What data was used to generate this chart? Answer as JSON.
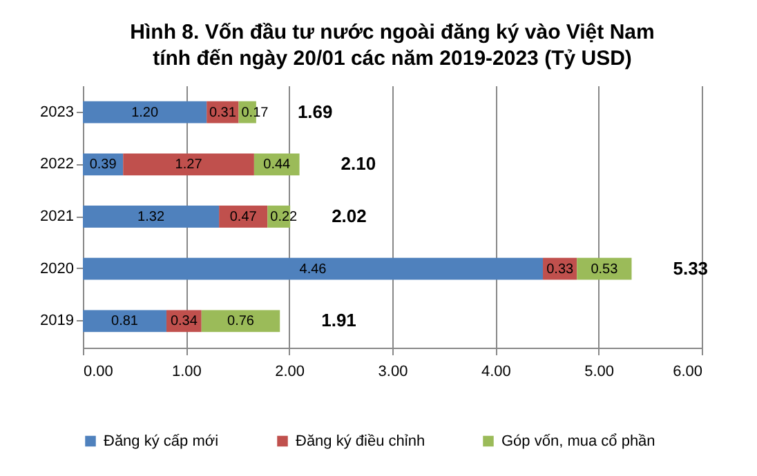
{
  "chart_data": {
    "type": "bar",
    "orientation": "horizontal",
    "stacked": true,
    "title": "Hình 8. Vốn đầu tư nước ngoài đăng ký vào Việt Nam\ntính đến ngày 20/01 các năm 2019-2023 (Tỷ USD)",
    "categories": [
      "2023",
      "2022",
      "2021",
      "2020",
      "2019"
    ],
    "series": [
      {
        "name": "Đăng ký cấp mới",
        "color": "#4f81bd",
        "values": [
          1.2,
          0.39,
          1.32,
          4.46,
          0.81
        ],
        "value_labels": [
          "1.20",
          "0.39",
          "1.32",
          "4.46",
          "0.81"
        ]
      },
      {
        "name": "Đăng ký điều chỉnh",
        "color": "#c0504d",
        "values": [
          0.31,
          1.27,
          0.47,
          0.33,
          0.34
        ],
        "value_labels": [
          "0.31",
          "1.27",
          "0.47",
          "0.33",
          "0.34"
        ]
      },
      {
        "name": "Góp vốn, mua cổ phần",
        "color": "#9bbb59",
        "values": [
          0.17,
          0.44,
          0.22,
          0.53,
          0.76
        ],
        "value_labels": [
          "0.17",
          "0.44",
          "0.22",
          "0.53",
          "0.76"
        ]
      }
    ],
    "totals": [
      "1.69",
      "2.10",
      "2.02",
      "5.33",
      "1.91"
    ],
    "xlim": [
      0,
      6
    ],
    "xticks": [
      {
        "value": 0,
        "label": "0.00"
      },
      {
        "value": 1,
        "label": "1.00"
      },
      {
        "value": 2,
        "label": "2.00"
      },
      {
        "value": 3,
        "label": "3.00"
      },
      {
        "value": 4,
        "label": "4.00"
      },
      {
        "value": 5,
        "label": "5.00"
      },
      {
        "value": 6,
        "label": "6.00"
      }
    ],
    "grid": "x",
    "legend": "bottom"
  }
}
